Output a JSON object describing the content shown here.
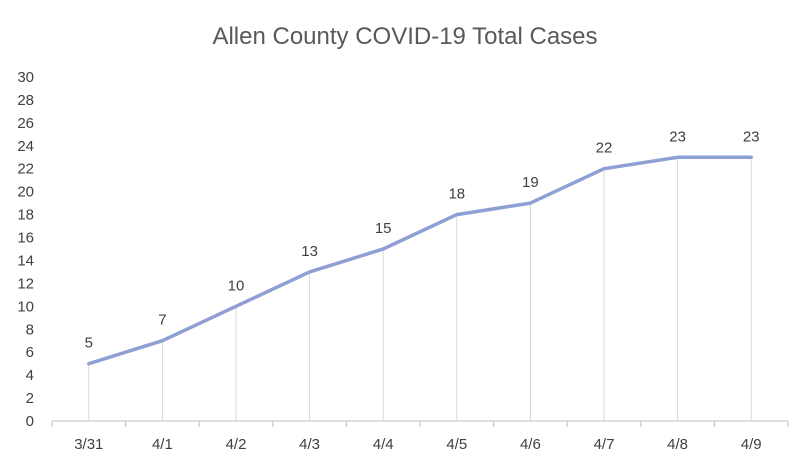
{
  "chart_data": {
    "type": "line",
    "title": "Allen County COVID-19 Total Cases",
    "xlabel": "",
    "ylabel": "",
    "categories": [
      "3/31",
      "4/1",
      "4/2",
      "4/3",
      "4/4",
      "4/5",
      "4/6",
      "4/7",
      "4/8",
      "4/9"
    ],
    "series": [
      {
        "values": [
          5,
          7,
          10,
          13,
          15,
          18,
          19,
          22,
          23,
          23
        ]
      }
    ],
    "ylim": [
      0,
      30
    ],
    "yticks": [
      0,
      2,
      4,
      6,
      8,
      10,
      12,
      14,
      16,
      18,
      20,
      22,
      24,
      26,
      28,
      30
    ],
    "grid": "vertical drop lines",
    "legend": "none",
    "data_labels": true,
    "colors": {
      "line": "#8e9fd3",
      "drop_lines": "#d9d9d9",
      "axis": "#bfbfbf",
      "text": "#404040",
      "title": "#595959"
    }
  }
}
